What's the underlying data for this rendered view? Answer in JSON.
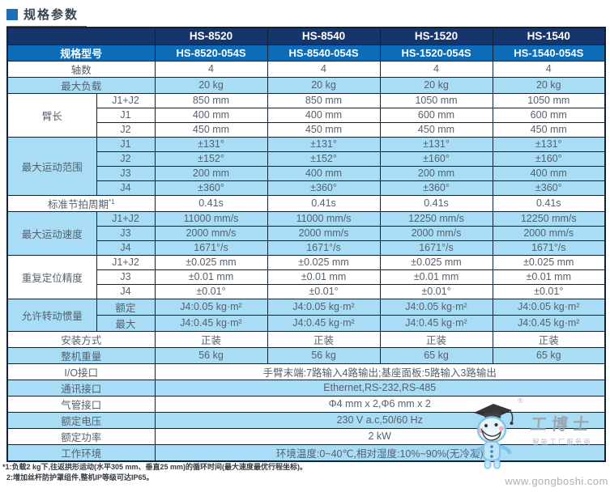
{
  "page": {
    "title": "规格参数"
  },
  "colors": {
    "header_dark": "#16356C",
    "header_blue": "#0C6CB8",
    "row_blue": "#A9DDF5",
    "border": "#0E2136",
    "text": "#54616F",
    "accent": "#1C70B8"
  },
  "table": {
    "header": {
      "model_row": [
        "HS-8520",
        "HS-8540",
        "HS-1520",
        "HS-1540"
      ],
      "spec_label": "规格型号",
      "spec_row": [
        "HS-8520-054S",
        "HS-8540-054S",
        "HS-1520-054S",
        "HS-1540-054S"
      ]
    },
    "rows": [
      {
        "label": "轴数",
        "shade": "white",
        "values": [
          "4",
          "4",
          "4",
          "4"
        ]
      },
      {
        "label": "最大负载",
        "shade": "blue",
        "values": [
          "20 kg",
          "20 kg",
          "20 kg",
          "20 kg"
        ]
      },
      {
        "label": "臂长",
        "shade": "white",
        "subrows": [
          {
            "sub": "J1+J2",
            "values": [
              "850 mm",
              "850 mm",
              "1050 mm",
              "1050 mm"
            ]
          },
          {
            "sub": "J1",
            "values": [
              "400 mm",
              "400 mm",
              "600 mm",
              "600 mm"
            ]
          },
          {
            "sub": "J2",
            "values": [
              "450 mm",
              "450 mm",
              "450 mm",
              "450 mm"
            ]
          }
        ]
      },
      {
        "label": "最大运动范围",
        "shade": "blue",
        "subrows": [
          {
            "sub": "J1",
            "values": [
              "±131°",
              "±131°",
              "±131°",
              "±131°"
            ]
          },
          {
            "sub": "J2",
            "values": [
              "±152°",
              "±152°",
              "±160°",
              "±160°"
            ]
          },
          {
            "sub": "J3",
            "values": [
              "200 mm",
              "400 mm",
              "200 mm",
              "400 mm"
            ]
          },
          {
            "sub": "J4",
            "values": [
              "±360°",
              "±360°",
              "±360°",
              "±360°"
            ]
          }
        ]
      },
      {
        "label": "标准节拍周期",
        "note_ref": "*1",
        "shade": "white",
        "values": [
          "0.41s",
          "0.41s",
          "0.41s",
          "0.41s"
        ]
      },
      {
        "label": "最大运动速度",
        "shade": "blue",
        "subrows": [
          {
            "sub": "J1+J2",
            "values": [
              "11000 mm/s",
              "11000 mm/s",
              "12250 mm/s",
              "12250 mm/s"
            ]
          },
          {
            "sub": "J3",
            "values": [
              "2000 mm/s",
              "2000 mm/s",
              "2000 mm/s",
              "2000 mm/s"
            ]
          },
          {
            "sub": "J4",
            "values": [
              "1671°/s",
              "1671°/s",
              "1671°/s",
              "1671°/s"
            ]
          }
        ]
      },
      {
        "label": "重复定位精度",
        "shade": "white",
        "subrows": [
          {
            "sub": "J1+J2",
            "values": [
              "±0.025 mm",
              "±0.025 mm",
              "±0.025 mm",
              "±0.025 mm"
            ]
          },
          {
            "sub": "J3",
            "values": [
              "±0.01 mm",
              "±0.01 mm",
              "±0.01 mm",
              "±0.01 mm"
            ]
          },
          {
            "sub": "J4",
            "values": [
              "±0.01°",
              "±0.01°",
              "±0.01°",
              "±0.01°"
            ]
          }
        ]
      },
      {
        "label": "允许转动惯量",
        "shade": "blue",
        "subrows": [
          {
            "sub": "额定",
            "values": [
              "J4:0.05 kg·m²",
              "J4:0.05 kg·m²",
              "J4:0.05 kg·m²",
              "J4:0.05 kg·m²"
            ]
          },
          {
            "sub": "最大",
            "values": [
              "J4:0.45 kg·m²",
              "J4:0.45 kg·m²",
              "J4:0.45 kg·m²",
              "J4:0.45 kg·m²"
            ]
          }
        ]
      },
      {
        "label": "安装方式",
        "shade": "white",
        "values": [
          "正装",
          "正装",
          "正装",
          "正装"
        ]
      },
      {
        "label": "整机重量",
        "shade": "blue",
        "values": [
          "56 kg",
          "56 kg",
          "65 kg",
          "65 kg"
        ]
      },
      {
        "label": "I/O接口",
        "shade": "white",
        "span_value": "手臂末端:7路输入4路输出;基座面板:5路输入3路输出"
      },
      {
        "label": "通讯接口",
        "shade": "blue",
        "span_value": "Ethernet,RS-232,RS-485"
      },
      {
        "label": "气管接口",
        "shade": "white",
        "span_value": "Φ4 mm x 2,Φ6 mm x 2"
      },
      {
        "label": "额定电压",
        "shade": "blue",
        "span_value": "230 V a.c,50/60 Hz"
      },
      {
        "label": "额定功率",
        "shade": "white",
        "span_value": "2 kW"
      },
      {
        "label": "工作环境",
        "shade": "blue",
        "span_value": "环境温度:0~40℃,相对湿度:10%~90%(无冷凝)"
      }
    ]
  },
  "footnotes": [
    "*1:负载2 kg下,往返拱形运动(水平305 mm、垂直25 mm)的循环时间(最大速度最优行程坐标)。",
    "2:增加丝杆防护罩组件,整机IP等级可达IP65。"
  ],
  "watermark": {
    "registered_mark": "®",
    "brand": "工博士",
    "tagline": "智能工厂服务商",
    "url": "www.gongboshi.com"
  }
}
